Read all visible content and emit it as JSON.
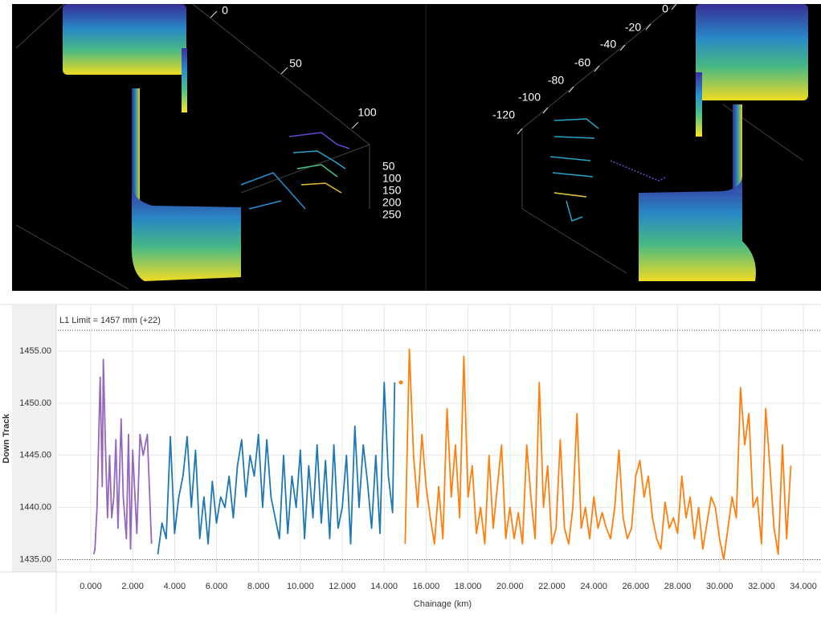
{
  "top_panel": {
    "left_axis_labels": [
      "0",
      "50",
      "100",
      "50",
      "100",
      "150",
      "200",
      "250"
    ],
    "right_axis_labels": [
      "0",
      "-20",
      "-40",
      "-60",
      "-80",
      "-100",
      "-120"
    ]
  },
  "chart_data": {
    "type": "line",
    "y_label": "Down Track",
    "x_label": "Chainage (km)",
    "annotation": "L1 Limit = 1457 mm (+22)",
    "reference_lines": [
      1457,
      1435
    ],
    "xlim": [
      -1.57,
      34.84
    ],
    "ylim": [
      1433.8,
      1459.4
    ],
    "grid": true,
    "xticks": [
      {
        "value": 0,
        "label": "0.000"
      },
      {
        "value": 2,
        "label": "2.000"
      },
      {
        "value": 4,
        "label": "4.000"
      },
      {
        "value": 6,
        "label": "6.000"
      },
      {
        "value": 8,
        "label": "8.000"
      },
      {
        "value": 10,
        "label": "10.000"
      },
      {
        "value": 12,
        "label": "12.000"
      },
      {
        "value": 14,
        "label": "14.000"
      },
      {
        "value": 16,
        "label": "16.000"
      },
      {
        "value": 18,
        "label": "18.000"
      },
      {
        "value": 20,
        "label": "20.000"
      },
      {
        "value": 22,
        "label": "22.000"
      },
      {
        "value": 24,
        "label": "24.000"
      },
      {
        "value": 26,
        "label": "26.000"
      },
      {
        "value": 28,
        "label": "28.000"
      },
      {
        "value": 30,
        "label": "30.000"
      },
      {
        "value": 32,
        "label": "32.000"
      },
      {
        "value": 34,
        "label": "34.000"
      }
    ],
    "yticks": [
      {
        "value": 1435,
        "label": "1435.00"
      },
      {
        "value": 1440,
        "label": "1440.00"
      },
      {
        "value": 1445,
        "label": "1445.00"
      },
      {
        "value": 1450,
        "label": "1450.00"
      },
      {
        "value": 1455,
        "label": "1455.00"
      }
    ],
    "series": [
      {
        "color": "#9467bd",
        "x": [
          0.15,
          0.2,
          0.3,
          0.45,
          0.55,
          0.6,
          0.7,
          0.8,
          0.9,
          1.0,
          1.1,
          1.2,
          1.3,
          1.45,
          1.55,
          1.7,
          1.8,
          1.9,
          2.0,
          2.2,
          2.35,
          2.5,
          2.7,
          2.9
        ],
        "values": [
          1435.5,
          1436,
          1440,
          1452.5,
          1442,
          1454.2,
          1446,
          1439,
          1445,
          1439,
          1441,
          1446.5,
          1438,
          1448.5,
          1441,
          1437,
          1447,
          1436,
          1445.5,
          1437.5,
          1447,
          1445,
          1447,
          1436.5
        ]
      },
      {
        "color": "#1f77b4",
        "x": [
          3.2,
          3.4,
          3.6,
          3.8,
          4.0,
          4.2,
          4.4,
          4.6,
          4.8,
          5.0,
          5.2,
          5.4,
          5.6,
          5.8,
          6.0,
          6.2,
          6.4,
          6.6,
          6.8,
          7.0,
          7.2,
          7.4,
          7.6,
          7.8,
          8.0,
          8.2,
          8.4,
          8.6,
          8.8,
          9.0,
          9.2,
          9.4,
          9.6,
          9.8,
          10.0,
          10.2,
          10.4,
          10.6,
          10.8,
          11.0,
          11.2,
          11.4,
          11.6,
          11.8,
          12.0,
          12.2,
          12.4,
          12.6,
          12.8,
          13.0,
          13.2,
          13.4,
          13.6,
          13.8,
          14.0,
          14.2,
          14.4,
          14.5
        ],
        "values": [
          1435.5,
          1438.5,
          1437,
          1446.8,
          1437.5,
          1441,
          1443,
          1446.8,
          1440,
          1445.5,
          1437,
          1441,
          1436.5,
          1442.5,
          1438.5,
          1441,
          1440,
          1443,
          1439,
          1444,
          1446.5,
          1441,
          1445,
          1443,
          1447,
          1440,
          1446.5,
          1441,
          1439,
          1437,
          1445,
          1437.5,
          1443,
          1440,
          1445.5,
          1437,
          1444,
          1439,
          1446,
          1438.5,
          1444.5,
          1437,
          1446,
          1438,
          1440,
          1445,
          1436.5,
          1447.8,
          1440,
          1446,
          1442.5,
          1438,
          1445,
          1437.5,
          1452,
          1443,
          1439.5,
          1452
        ]
      },
      {
        "color": "#ff7f0e",
        "x": [
          14.8,
          14.9,
          15.0,
          15.2,
          15.4,
          15.6,
          15.8,
          16.0,
          16.2,
          16.4,
          16.6,
          16.8,
          17.0,
          17.2,
          17.4,
          17.6,
          17.8,
          18.0,
          18.2,
          18.4,
          18.6,
          18.8,
          19.0,
          19.2,
          19.4,
          19.6,
          19.8,
          20.0,
          20.2,
          20.4,
          20.6,
          20.8,
          21.0,
          21.2,
          21.4,
          21.6,
          21.8,
          22.0,
          22.2,
          22.4,
          22.6,
          22.8,
          23.0,
          23.2,
          23.4,
          23.6,
          23.8,
          24.0,
          24.2,
          24.4,
          24.6,
          24.8,
          25.0,
          25.2,
          25.4,
          25.6,
          25.8,
          26.0,
          26.2,
          26.4,
          26.6,
          26.8,
          27.0,
          27.2,
          27.4,
          27.6,
          27.8,
          28.0,
          28.2,
          28.4,
          28.6,
          28.8,
          29.0,
          29.2,
          29.4,
          29.6,
          29.8,
          30.0,
          30.2,
          30.4,
          30.6,
          30.8,
          31.0,
          31.2,
          31.4,
          31.6,
          31.8,
          32.0,
          32.2,
          32.4,
          32.6,
          32.8,
          33.0,
          33.2,
          33.4
        ],
        "values": [
          1452,
          null,
          1436.5,
          1455.2,
          1445,
          1440,
          1447,
          1442,
          1439,
          1436.5,
          1442,
          1437,
          1449.5,
          1441,
          1446,
          1439,
          1454.5,
          1441,
          1444,
          1437.5,
          1440,
          1436.5,
          1445,
          1438,
          1442,
          1446,
          1437,
          1440,
          1437,
          1439.5,
          1436.5,
          1446,
          1441,
          1437,
          1452,
          1440,
          1444,
          1436.5,
          1438,
          1446.5,
          1438,
          1436.5,
          1440,
          1449,
          1438,
          1440,
          1437,
          1441,
          1438,
          1439.5,
          1438,
          1437,
          1440,
          1445.5,
          1439,
          1437,
          1438,
          1443,
          1444.5,
          1441,
          1443,
          1439,
          1437,
          1436,
          1440.5,
          1438,
          1439,
          1437.5,
          1443,
          1439,
          1441,
          1437,
          1440,
          1436,
          1438.5,
          1441,
          1440,
          1437,
          1435,
          1438,
          1441,
          1439,
          1451.5,
          1446,
          1449,
          1440,
          1441,
          1436.5,
          1449.5,
          1444,
          1438,
          1435.5,
          1446,
          1437,
          1444
        ]
      }
    ]
  }
}
